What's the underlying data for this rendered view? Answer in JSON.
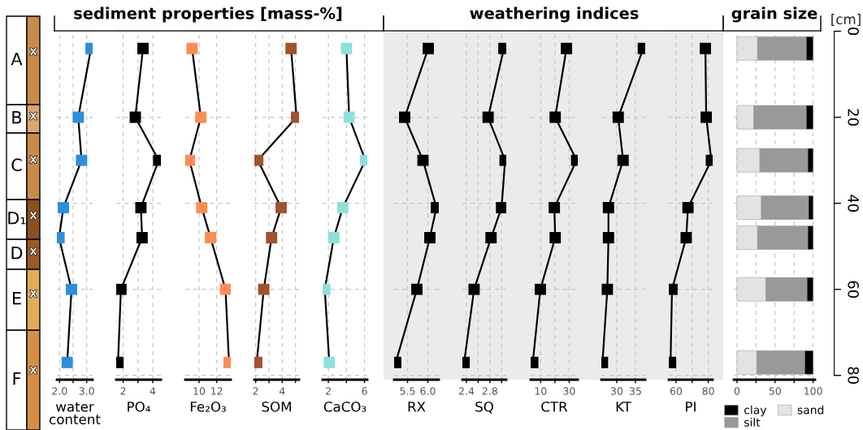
{
  "chart_data": [
    {
      "type": "other",
      "categories": [
        "A",
        "B",
        "C",
        "D₁",
        "D",
        "E",
        "F"
      ],
      "colors": [
        "#c98b4a",
        "#d9a66f",
        "#c98b4a",
        "#8b5020",
        "#9c5a25",
        "#e0ad58",
        "#d48f45"
      ],
      "annotations": [
        "x",
        "x",
        "x",
        "x",
        "x",
        "x",
        "x"
      ]
    },
    {
      "type": "line",
      "orientation": "horizontal",
      "xlabel": "water\ncontent",
      "marker": "square",
      "grid": true,
      "tick_labels": "x",
      "x": [
        4,
        20,
        30,
        41,
        48,
        60,
        77
      ],
      "values": [
        3.16,
        2.69,
        2.81,
        2.14,
        1.98,
        2.44,
        2.28
      ],
      "color": "#2b8fde",
      "xlim": [
        1.9,
        3.22
      ],
      "xticks": [
        {
          "value": 2.0,
          "label": "2.0"
        },
        {
          "value": 2.5,
          "label": null
        },
        {
          "value": 3.0,
          "label": "3.0"
        }
      ],
      "ylim": [
        81,
        0
      ],
      "yticks": [
        0,
        20,
        40,
        60,
        80
      ]
    },
    {
      "type": "line",
      "orientation": "horizontal",
      "xlabel": "PO₄",
      "marker": "square",
      "grid": true,
      "tick_labels": "x",
      "x": [
        4,
        20,
        30,
        41,
        48,
        60,
        77
      ],
      "values": [
        3.34,
        2.82,
        4.4,
        3.2,
        3.28,
        1.85,
        1.65
      ],
      "color": "#000000",
      "xlim": [
        1.53,
        4.55
      ],
      "xticks": [
        2,
        {
          "value": 3,
          "label": null
        },
        4
      ],
      "ylim": [
        81,
        0
      ],
      "yticks": [
        0,
        20,
        40,
        60,
        80
      ]
    },
    {
      "type": "line",
      "orientation": "horizontal",
      "title": "sediment properties [mass-%]",
      "xlabel": "Fe₂O₃",
      "marker": "square",
      "grid": true,
      "tick_labels": "x",
      "x": [
        4,
        20,
        30,
        41,
        48,
        60,
        77
      ],
      "values": [
        9.2,
        10.2,
        8.9,
        10.3,
        11.3,
        13.0,
        13.4
      ],
      "color": "#ff8c55",
      "xlim": [
        8.43,
        13.6
      ],
      "xticks": [
        10,
        12
      ],
      "ylim": [
        81,
        0
      ],
      "yticks": [
        0,
        20,
        40,
        60,
        80
      ]
    },
    {
      "type": "line",
      "orientation": "horizontal",
      "xlabel": "SOM",
      "marker": "square",
      "grid": true,
      "tick_labels": "x",
      "x": [
        4,
        20,
        30,
        41,
        48,
        60,
        77
      ],
      "values": [
        4.67,
        5.08,
        2.16,
        3.92,
        3.2,
        2.61,
        2.08
      ],
      "color": "#a0522d",
      "xlim": [
        1.9,
        5.27
      ],
      "xticks": [
        2,
        {
          "value": 3,
          "label": null
        },
        4,
        {
          "value": 5,
          "label": null
        }
      ],
      "ylim": [
        81,
        0
      ],
      "yticks": [
        0,
        20,
        40,
        60,
        80
      ]
    },
    {
      "type": "line",
      "orientation": "horizontal",
      "xlabel": "CaCO₃",
      "marker": "square",
      "grid": true,
      "tick_labels": "x",
      "x": [
        4,
        20,
        30,
        41,
        48,
        60,
        77
      ],
      "values": [
        4.0,
        4.3,
        6.1,
        3.6,
        2.6,
        1.6,
        2.1
      ],
      "color": "#8ee0dc",
      "xlim": [
        1.36,
        6.31
      ],
      "xticks": [
        2,
        {
          "value": 4,
          "label": null
        },
        6
      ],
      "ylim": [
        81,
        0
      ],
      "yticks": [
        0,
        20,
        40,
        60,
        80
      ]
    },
    {
      "type": "line",
      "orientation": "horizontal",
      "xlabel": "RX",
      "marker": "square",
      "grid": true,
      "tick_labels": "x",
      "x": [
        4,
        20,
        30,
        41,
        48,
        60,
        77
      ],
      "values": [
        6.01,
        5.43,
        5.88,
        6.21,
        6.05,
        5.73,
        5.21
      ],
      "color": "#000000",
      "xlim": [
        5.17,
        6.27
      ],
      "xticks": [
        5.5,
        {
          "value": 6.0,
          "label": "6.0"
        }
      ],
      "ylim": [
        81,
        0
      ],
      "yticks": [
        0,
        20,
        40,
        60,
        80
      ]
    },
    {
      "type": "line",
      "orientation": "horizontal",
      "xlabel": "SQ",
      "marker": "square",
      "grid": true,
      "tick_labels": "x",
      "x": [
        4,
        20,
        30,
        41,
        48,
        60,
        77
      ],
      "values": [
        3.04,
        2.77,
        3.06,
        3.0,
        2.82,
        2.53,
        2.36
      ],
      "color": "#000000",
      "xlim": [
        2.33,
        3.08
      ],
      "xticks": [
        2.4,
        {
          "value": 2.6,
          "label": null
        },
        2.8,
        {
          "value": 3.0,
          "label": null
        }
      ],
      "ylim": [
        81,
        0
      ],
      "yticks": [
        0,
        20,
        40,
        60,
        80
      ]
    },
    {
      "type": "line",
      "orientation": "horizontal",
      "title": "weathering indices",
      "xlabel": "CTR",
      "marker": "square",
      "grid": true,
      "tick_labels": "x",
      "x": [
        4,
        20,
        30,
        41,
        48,
        60,
        77
      ],
      "values": [
        28.1,
        20.2,
        35.2,
        19.6,
        20.2,
        9.8,
        4.5
      ],
      "color": "#000000",
      "xlim": [
        3,
        36
      ],
      "xticks": [
        10,
        {
          "value": 20,
          "label": null
        },
        30
      ],
      "ylim": [
        81,
        0
      ],
      "yticks": [
        0,
        20,
        40,
        60,
        80
      ]
    },
    {
      "type": "line",
      "orientation": "horizontal",
      "xlabel": "KT",
      "marker": "square",
      "grid": true,
      "tick_labels": "x",
      "x": [
        4,
        20,
        30,
        41,
        48,
        60,
        77
      ],
      "values": [
        37.1,
        30.4,
        31.7,
        27.8,
        27.8,
        27.5,
        26.2
      ],
      "color": "#000000",
      "xlim": [
        25.9,
        37.6
      ],
      "xticks": [
        30,
        35
      ],
      "ylim": [
        81,
        0
      ],
      "yticks": [
        0,
        20,
        40,
        60,
        80
      ]
    },
    {
      "type": "line",
      "orientation": "horizontal",
      "xlabel": "PI",
      "marker": "square",
      "grid": true,
      "tick_labels": "x",
      "x": [
        4,
        20,
        30,
        41,
        48,
        60,
        77
      ],
      "values": [
        78.2,
        78.7,
        81.9,
        67.4,
        66.3,
        57.5,
        56.6
      ],
      "color": "#000000",
      "xlim": [
        55.5,
        82.7
      ],
      "xticks": [
        60,
        {
          "value": 70,
          "label": null
        },
        80
      ],
      "ylim": [
        81,
        0
      ],
      "yticks": [
        0,
        20,
        40,
        60,
        80
      ]
    },
    {
      "type": "bar",
      "orientation": "horizontal",
      "stacked": true,
      "title": "grain size",
      "ylabel": "[cm]",
      "grid": true,
      "legend": "bottom",
      "x": [
        4,
        20,
        30,
        41,
        48,
        60,
        77
      ],
      "series": [
        {
          "name": "sand",
          "color": "#e3e3e3",
          "values": [
            27,
            22,
            30,
            32,
            27,
            38,
            26
          ]
        },
        {
          "name": "silt",
          "color": "#999999",
          "values": [
            64,
            69,
            63,
            62,
            66,
            54,
            63
          ]
        },
        {
          "name": "clay",
          "color": "#000000",
          "values": [
            9,
            9,
            7,
            6,
            7,
            8,
            11
          ]
        }
      ],
      "xlim": [
        -4.2,
        102.5
      ],
      "xticks": [
        0,
        {
          "value": 25,
          "label": null
        },
        50,
        {
          "value": 75,
          "label": null
        },
        100
      ],
      "ylim": [
        81,
        0
      ],
      "yticks": [
        0,
        20,
        40,
        60,
        80
      ]
    }
  ]
}
